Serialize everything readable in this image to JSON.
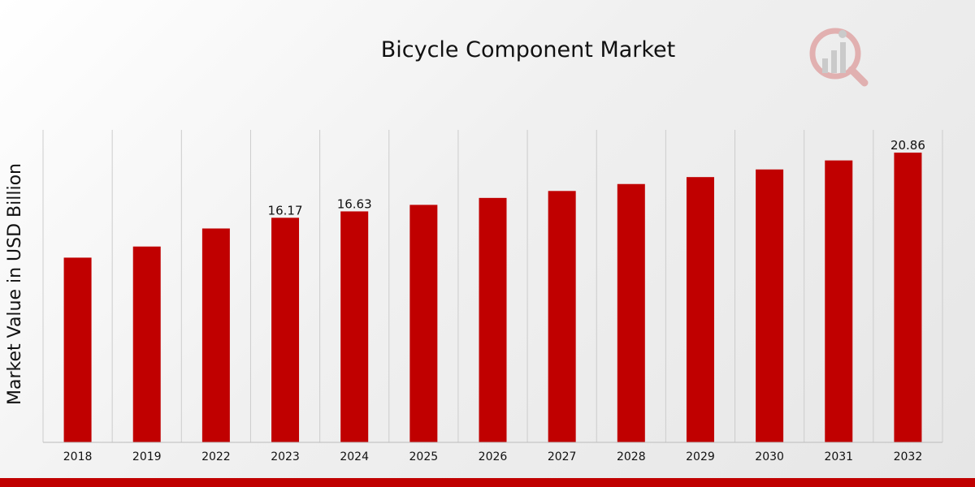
{
  "chart_data": {
    "type": "bar",
    "title": "Bicycle Component Market",
    "xlabel": "",
    "ylabel": "Market Value in USD Billion",
    "categories": [
      "2018",
      "2019",
      "2022",
      "2023",
      "2024",
      "2025",
      "2026",
      "2027",
      "2028",
      "2029",
      "2030",
      "2031",
      "2032"
    ],
    "values": [
      13.3,
      14.1,
      15.4,
      16.17,
      16.63,
      17.1,
      17.6,
      18.1,
      18.6,
      19.1,
      19.65,
      20.3,
      20.86
    ],
    "data_labels": [
      null,
      null,
      null,
      "16.17",
      "16.63",
      null,
      null,
      null,
      null,
      null,
      null,
      null,
      "20.86"
    ],
    "ylim": [
      0,
      22.5
    ],
    "grid": "vertical",
    "legend": "none",
    "colors": {
      "bar": "#c00000",
      "grid": "#cccccc",
      "axis": "#bbbbbb",
      "footer": "#c00000"
    }
  }
}
